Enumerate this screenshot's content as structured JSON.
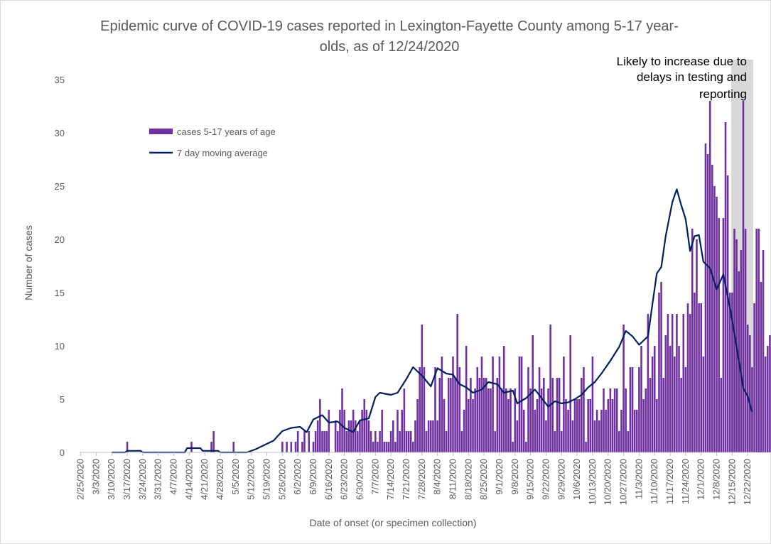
{
  "chart_data": {
    "type": "bar",
    "title_lines": [
      "Epidemic curve of COVID-19 cases reported in Lexington-Fayette County among 5-17 year-",
      "olds, as of 12/24/2020"
    ],
    "xlabel": "Date of onset (or specimen collection)",
    "ylabel": "Number of cases",
    "ylim": [
      0,
      35
    ],
    "yticks": [
      0,
      5,
      10,
      15,
      20,
      25,
      30,
      35
    ],
    "x_start": "2020-02-25",
    "x_end": "2020-12-24",
    "xtick_labels": [
      "2/25/2020",
      "3/3/2020",
      "3/10/2020",
      "3/17/2020",
      "3/24/2020",
      "3/31/2020",
      "4/7/2020",
      "4/14/2020",
      "4/21/2020",
      "4/28/2020",
      "5/5/2020",
      "5/12/2020",
      "5/19/2020",
      "5/26/2020",
      "6/2/2020",
      "6/9/2020",
      "6/16/2020",
      "6/23/2020",
      "6/30/2020",
      "7/7/2020",
      "7/14/2020",
      "7/21/2020",
      "7/28/2020",
      "8/4/2020",
      "8/11/2020",
      "8/18/2020",
      "8/25/2020",
      "9/1/2020",
      "9/8/2020",
      "9/15/2020",
      "9/22/2020",
      "9/29/2020",
      "10/6/2020",
      "10/13/2020",
      "10/20/2020",
      "10/27/2020",
      "11/3/2020",
      "11/10/2020",
      "11/17/2020",
      "11/24/2020",
      "12/1/2020",
      "12/8/2020",
      "12/15/2020",
      "12/22/2020"
    ],
    "legend_position": "upper-left",
    "grid": false,
    "shaded_period": [
      "2020-12-15",
      "2020-12-24"
    ],
    "annotation_lines": [
      "Likely to increase due to",
      "delays in testing and",
      "reporting"
    ],
    "series": [
      {
        "name": "cases 5-17 years of age",
        "type": "bar",
        "color": "#7030A0",
        "values": [
          0,
          0,
          0,
          0,
          0,
          0,
          0,
          0,
          0,
          0,
          0,
          0,
          0,
          0,
          0,
          0,
          0,
          0,
          0,
          0,
          0,
          1,
          0,
          0,
          0,
          0,
          0,
          0,
          0,
          0,
          0,
          0,
          0,
          0,
          0,
          0,
          0,
          0,
          0,
          0,
          0,
          0,
          0,
          0,
          0,
          0,
          0,
          0,
          0,
          0,
          1,
          0,
          0,
          0,
          0,
          0,
          0,
          0,
          0,
          1,
          2,
          0,
          0,
          0,
          0,
          0,
          0,
          0,
          0,
          1,
          0,
          0,
          0,
          0,
          0,
          0,
          0,
          0,
          0,
          0,
          0,
          0,
          0,
          0,
          0,
          0,
          0,
          0,
          0,
          0,
          0,
          1,
          0,
          1,
          0,
          1,
          0,
          1,
          2,
          0,
          1,
          2,
          0,
          2,
          0,
          1,
          2,
          3,
          5,
          2,
          2,
          2,
          4,
          0,
          0,
          3,
          2,
          4,
          6,
          4,
          2,
          3,
          3,
          4,
          3,
          2,
          3,
          4,
          5,
          4,
          3,
          2,
          1,
          2,
          1,
          2,
          4,
          1,
          1,
          1,
          2,
          3,
          1,
          4,
          2,
          4,
          6,
          2,
          2,
          2,
          1,
          3,
          5,
          8,
          12,
          8,
          2,
          3,
          3,
          3,
          8,
          3,
          7,
          9,
          5,
          2,
          7,
          7,
          9,
          7,
          13,
          8,
          2,
          4,
          10,
          5,
          7,
          5,
          6,
          8,
          7,
          9,
          7,
          7,
          6,
          6,
          9,
          2,
          7,
          9,
          6,
          10,
          6,
          5,
          6,
          1,
          6,
          3,
          9,
          9,
          4,
          1,
          8,
          6,
          11,
          4,
          5,
          8,
          6,
          7,
          3,
          6,
          12,
          7,
          2,
          7,
          7,
          2,
          9,
          5,
          4,
          11,
          3,
          5,
          5,
          5,
          7,
          8,
          1,
          5,
          5,
          9,
          3,
          4,
          3,
          4,
          6,
          4,
          5,
          6,
          5,
          6,
          6,
          2,
          4,
          12,
          6,
          2,
          8,
          8,
          4,
          4,
          8,
          10,
          5,
          6,
          13,
          7,
          9,
          10,
          5,
          15,
          16,
          7,
          11,
          13,
          10,
          13,
          9,
          13,
          10,
          7,
          13,
          8,
          14,
          13,
          21,
          15,
          20,
          14,
          14,
          9,
          29,
          28,
          33,
          27,
          25,
          24,
          22,
          7,
          22,
          31,
          26,
          15,
          15,
          21,
          20,
          17,
          19,
          33,
          21,
          12,
          11,
          8,
          14,
          21,
          21,
          16,
          19,
          9,
          10,
          11,
          9,
          10,
          11,
          4,
          3,
          1,
          6,
          6,
          8,
          1
        ]
      },
      {
        "name": "7 day moving average",
        "type": "line",
        "color": "#002060",
        "anchors": [
          [
            "2020-03-10",
            0.0
          ],
          [
            "2020-03-16",
            0.0
          ],
          [
            "2020-03-17",
            0.15
          ],
          [
            "2020-03-23",
            0.15
          ],
          [
            "2020-03-24",
            0.0
          ],
          [
            "2020-04-12",
            0.0
          ],
          [
            "2020-04-13",
            0.4
          ],
          [
            "2020-04-19",
            0.4
          ],
          [
            "2020-04-20",
            0.15
          ],
          [
            "2020-04-27",
            0.15
          ],
          [
            "2020-04-28",
            0.0
          ],
          [
            "2020-05-10",
            0.0
          ],
          [
            "2020-05-14",
            0.3
          ],
          [
            "2020-05-19",
            0.8
          ],
          [
            "2020-05-22",
            1.1
          ],
          [
            "2020-05-26",
            2.0
          ],
          [
            "2020-05-30",
            2.3
          ],
          [
            "2020-06-03",
            2.4
          ],
          [
            "2020-06-06",
            1.9
          ],
          [
            "2020-06-09",
            3.1
          ],
          [
            "2020-06-13",
            3.5
          ],
          [
            "2020-06-16",
            2.8
          ],
          [
            "2020-06-20",
            2.9
          ],
          [
            "2020-06-23",
            2.3
          ],
          [
            "2020-06-27",
            1.9
          ],
          [
            "2020-06-30",
            3.0
          ],
          [
            "2020-07-04",
            3.2
          ],
          [
            "2020-07-07",
            5.2
          ],
          [
            "2020-07-09",
            5.6
          ],
          [
            "2020-07-14",
            5.4
          ],
          [
            "2020-07-17",
            5.6
          ],
          [
            "2020-07-21",
            6.9
          ],
          [
            "2020-07-24",
            8.0
          ],
          [
            "2020-07-28",
            7.2
          ],
          [
            "2020-08-01",
            6.2
          ],
          [
            "2020-08-04",
            7.9
          ],
          [
            "2020-08-08",
            7.4
          ],
          [
            "2020-08-11",
            7.3
          ],
          [
            "2020-08-14",
            6.4
          ],
          [
            "2020-08-17",
            6.1
          ],
          [
            "2020-08-20",
            5.6
          ],
          [
            "2020-08-24",
            5.9
          ],
          [
            "2020-08-27",
            6.6
          ],
          [
            "2020-08-31",
            6.4
          ],
          [
            "2020-09-03",
            5.6
          ],
          [
            "2020-09-07",
            5.8
          ],
          [
            "2020-09-09",
            4.6
          ],
          [
            "2020-09-13",
            5.1
          ],
          [
            "2020-09-17",
            5.9
          ],
          [
            "2020-09-20",
            5.1
          ],
          [
            "2020-09-23",
            4.3
          ],
          [
            "2020-09-26",
            4.8
          ],
          [
            "2020-09-29",
            4.6
          ],
          [
            "2020-10-02",
            4.7
          ],
          [
            "2020-10-05",
            5.0
          ],
          [
            "2020-10-08",
            5.4
          ],
          [
            "2020-10-11",
            6.1
          ],
          [
            "2020-10-14",
            6.6
          ],
          [
            "2020-10-17",
            7.4
          ],
          [
            "2020-10-21",
            8.6
          ],
          [
            "2020-10-25",
            9.9
          ],
          [
            "2020-10-28",
            11.4
          ],
          [
            "2020-10-31",
            10.9
          ],
          [
            "2020-11-03",
            10.1
          ],
          [
            "2020-11-07",
            10.9
          ],
          [
            "2020-11-09",
            13.9
          ],
          [
            "2020-11-11",
            16.8
          ],
          [
            "2020-11-13",
            17.4
          ],
          [
            "2020-11-15",
            20.3
          ],
          [
            "2020-11-18",
            23.5
          ],
          [
            "2020-11-20",
            24.7
          ],
          [
            "2020-11-22",
            23.2
          ],
          [
            "2020-11-24",
            21.9
          ],
          [
            "2020-11-26",
            18.9
          ],
          [
            "2020-11-28",
            20.3
          ],
          [
            "2020-11-30",
            20.4
          ],
          [
            "2020-12-02",
            17.9
          ],
          [
            "2020-12-05",
            17.3
          ],
          [
            "2020-12-08",
            15.3
          ],
          [
            "2020-12-11",
            16.7
          ],
          [
            "2020-12-14",
            13.6
          ],
          [
            "2020-12-17",
            9.9
          ],
          [
            "2020-12-20",
            6.0
          ],
          [
            "2020-12-22",
            5.3
          ],
          [
            "2020-12-24",
            3.8
          ]
        ]
      }
    ]
  }
}
